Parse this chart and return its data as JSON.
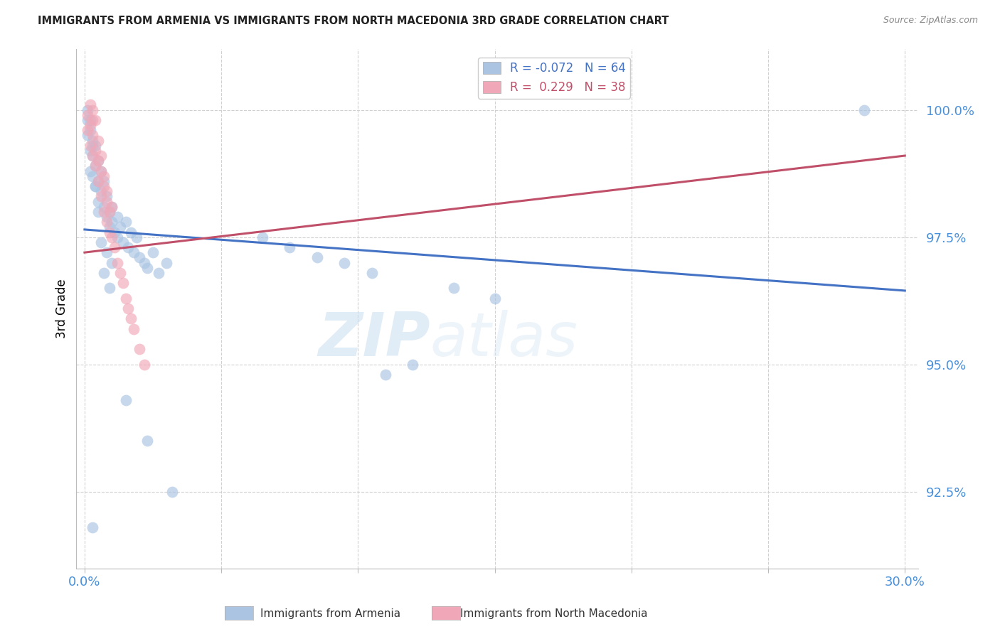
{
  "title": "IMMIGRANTS FROM ARMENIA VS IMMIGRANTS FROM NORTH MACEDONIA 3RD GRADE CORRELATION CHART",
  "source": "Source: ZipAtlas.com",
  "ylabel": "3rd Grade",
  "xlim": [
    -0.003,
    0.305
  ],
  "ylim": [
    91.0,
    101.2
  ],
  "xticks": [
    0.0,
    0.05,
    0.1,
    0.15,
    0.2,
    0.25,
    0.3
  ],
  "xticklabels": [
    "0.0%",
    "",
    "",
    "",
    "",
    "",
    "30.0%"
  ],
  "yticks": [
    92.5,
    95.0,
    97.5,
    100.0
  ],
  "yticklabels": [
    "92.5%",
    "95.0%",
    "97.5%",
    "100.0%"
  ],
  "R_armenia": -0.072,
  "N_armenia": 64,
  "R_macedonia": 0.229,
  "N_macedonia": 38,
  "armenia_color": "#aac4e2",
  "macedonia_color": "#f0a8b8",
  "trend_armenia_color": "#4472c4",
  "trend_macedonia_color": "#c0506a",
  "background_color": "#ffffff",
  "grid_color": "#d0d0d0",
  "axis_color": "#4a90d9",
  "watermark_left": "ZIP",
  "watermark_right": "atlas"
}
